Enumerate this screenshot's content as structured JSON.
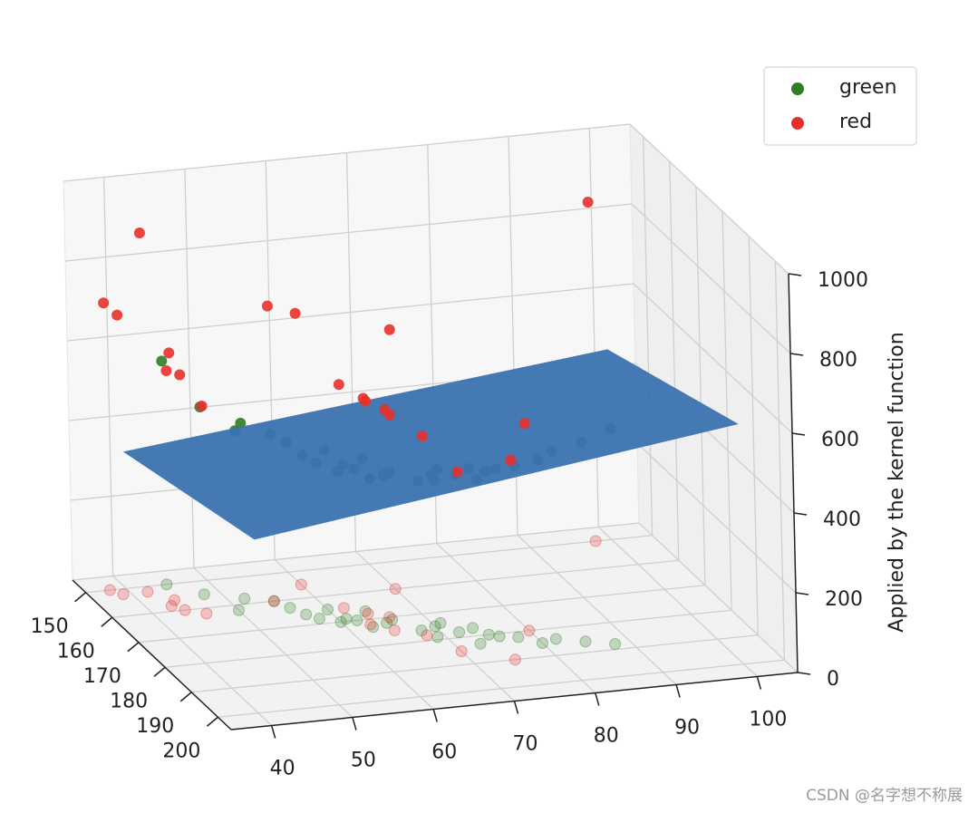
{
  "chart_data": {
    "type": "scatter3d",
    "zlabel": "Applied by the kernel function",
    "xlim": [
      145,
      205
    ],
    "ylim": [
      35,
      105
    ],
    "zlim": [
      0,
      1000
    ],
    "xticks": [
      150,
      160,
      170,
      180,
      190,
      200
    ],
    "yticks": [
      40,
      50,
      60,
      70,
      80,
      90,
      100
    ],
    "zticks": [
      0,
      200,
      400,
      600,
      800,
      1000
    ],
    "grid": true,
    "legend": "upper right",
    "surface": {
      "color": "#3a72b0",
      "x": [
        150,
        200
      ],
      "y": [
        40,
        100
      ],
      "z": [
        [
          343,
          477
        ],
        [
          435,
          602
        ]
      ]
    },
    "series": [
      {
        "name": "green",
        "color": "#2e7d22",
        "x": [
          160,
          165,
          170,
          172,
          168,
          175,
          178,
          180,
          182,
          185,
          176,
          173,
          171,
          169,
          166,
          163,
          158,
          174,
          177,
          181,
          184,
          186,
          170,
          167,
          179,
          183,
          162,
          155,
          188,
          150
        ],
        "y": [
          55,
          60,
          62,
          65,
          58,
          70,
          72,
          75,
          78,
          80,
          68,
          63,
          66,
          61,
          57,
          56,
          52,
          71,
          74,
          76,
          82,
          85,
          60,
          64,
          69,
          73,
          50,
          48,
          88,
          45
        ],
        "z": [
          420,
          400,
          380,
          370,
          390,
          380,
          395,
          410,
          430,
          460,
          375,
          372,
          368,
          385,
          400,
          415,
          440,
          385,
          400,
          420,
          470,
          500,
          378,
          382,
          392,
          412,
          450,
          470,
          540,
          560
        ]
      },
      {
        "name": "red",
        "color": "#e8302a",
        "x": [
          152,
          150,
          152,
          156,
          158,
          160,
          162,
          160,
          155,
          165,
          168,
          170,
          172,
          175,
          178,
          185,
          150,
          160,
          190,
          180
        ],
        "y": [
          42,
          38,
          39,
          44,
          43,
          44,
          46,
          55,
          60,
          62,
          64,
          66,
          63,
          65,
          68,
          70,
          98,
          70,
          75,
          80
        ],
        "z": [
          900,
          720,
          700,
          620,
          590,
          590,
          520,
          740,
          680,
          560,
          540,
          520,
          560,
          540,
          500,
          450,
          850,
          650,
          500,
          520
        ]
      }
    ],
    "watermark": "CSDN @名字想不称展"
  }
}
